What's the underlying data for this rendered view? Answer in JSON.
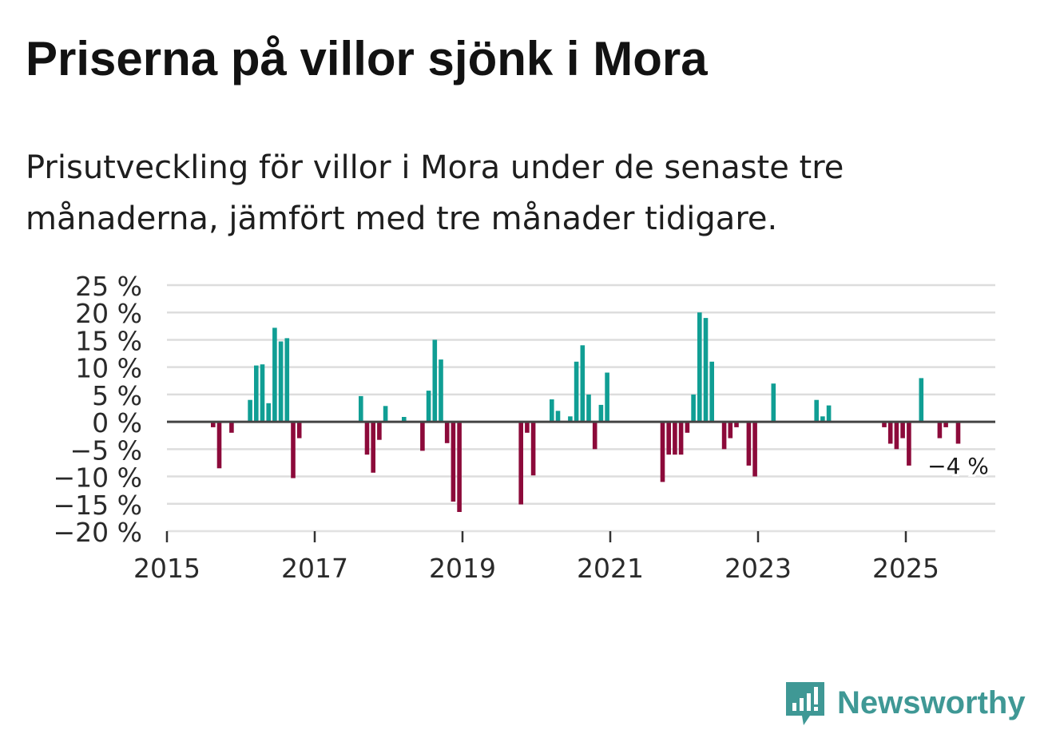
{
  "title": "Priserna på villor sjönk i Mora",
  "subtitle": "Prisutveckling för villor i Mora under de senaste tre månaderna, jämfört med tre månader tidigare.",
  "brand": {
    "name": "Newsworthy",
    "color": "#3f9895"
  },
  "colors": {
    "positive": "#109e94",
    "negative": "#8c0a3a",
    "grid": "#dddddd",
    "zero_line": "#444444"
  },
  "chart_data": {
    "type": "bar",
    "title": "Priserna på villor sjönk i Mora",
    "xlabel": "",
    "ylabel": "",
    "ylim": [
      -20,
      25
    ],
    "y_ticks": [
      25,
      20,
      15,
      10,
      5,
      0,
      -5,
      -10,
      -15,
      -20
    ],
    "y_tick_labels": [
      "25 %",
      "20 %",
      "15 %",
      "10 %",
      "5 %",
      "0 %",
      "−5 %",
      "−10 %",
      "−15 %",
      "−20 %"
    ],
    "x_tick_labels": [
      "2015",
      "2017",
      "2019",
      "2021",
      "2023",
      "2025"
    ],
    "x_tick_years": [
      2015,
      2017,
      2019,
      2021,
      2023,
      2025
    ],
    "start_year": 2015,
    "series": [
      {
        "name": "Prisutveckling",
        "points": [
          {
            "date": "2015-08",
            "value": -1
          },
          {
            "date": "2015-09",
            "value": -8.5
          },
          {
            "date": "2015-11",
            "value": -2
          },
          {
            "date": "2016-02",
            "value": 4
          },
          {
            "date": "2016-03",
            "value": 10.3
          },
          {
            "date": "2016-04",
            "value": 10.5
          },
          {
            "date": "2016-05",
            "value": 3.4
          },
          {
            "date": "2016-06",
            "value": 17.2
          },
          {
            "date": "2016-07",
            "value": 14.7
          },
          {
            "date": "2016-08",
            "value": 15.3
          },
          {
            "date": "2016-09",
            "value": -10.3
          },
          {
            "date": "2016-10",
            "value": -3
          },
          {
            "date": "2017-08",
            "value": 4.7
          },
          {
            "date": "2017-09",
            "value": -6
          },
          {
            "date": "2017-10",
            "value": -9.3
          },
          {
            "date": "2017-11",
            "value": -3.3
          },
          {
            "date": "2017-12",
            "value": 2.9
          },
          {
            "date": "2018-03",
            "value": 0.9
          },
          {
            "date": "2018-06",
            "value": -5.3
          },
          {
            "date": "2018-07",
            "value": 5.7
          },
          {
            "date": "2018-08",
            "value": 15
          },
          {
            "date": "2018-09",
            "value": 11.4
          },
          {
            "date": "2018-10",
            "value": -3.9
          },
          {
            "date": "2018-11",
            "value": -14.6
          },
          {
            "date": "2018-12",
            "value": -16.5
          },
          {
            "date": "2019-10",
            "value": -15.1
          },
          {
            "date": "2019-11",
            "value": -2
          },
          {
            "date": "2019-12",
            "value": -9.8
          },
          {
            "date": "2020-03",
            "value": 4.1
          },
          {
            "date": "2020-04",
            "value": 2
          },
          {
            "date": "2020-06",
            "value": 1
          },
          {
            "date": "2020-07",
            "value": 11
          },
          {
            "date": "2020-08",
            "value": 14
          },
          {
            "date": "2020-09",
            "value": 5
          },
          {
            "date": "2020-10",
            "value": -5
          },
          {
            "date": "2020-11",
            "value": 3.1
          },
          {
            "date": "2020-12",
            "value": 9
          },
          {
            "date": "2021-09",
            "value": -11
          },
          {
            "date": "2021-10",
            "value": -6
          },
          {
            "date": "2021-11",
            "value": -6
          },
          {
            "date": "2021-12",
            "value": -6
          },
          {
            "date": "2022-01",
            "value": -2
          },
          {
            "date": "2022-02",
            "value": 5
          },
          {
            "date": "2022-03",
            "value": 20
          },
          {
            "date": "2022-04",
            "value": 19
          },
          {
            "date": "2022-05",
            "value": 11
          },
          {
            "date": "2022-07",
            "value": -5
          },
          {
            "date": "2022-08",
            "value": -3
          },
          {
            "date": "2022-09",
            "value": -1
          },
          {
            "date": "2022-11",
            "value": -8
          },
          {
            "date": "2022-12",
            "value": -10
          },
          {
            "date": "2023-03",
            "value": 7
          },
          {
            "date": "2023-10",
            "value": 4
          },
          {
            "date": "2023-11",
            "value": 1
          },
          {
            "date": "2023-12",
            "value": 3
          },
          {
            "date": "2024-09",
            "value": -1
          },
          {
            "date": "2024-10",
            "value": -4
          },
          {
            "date": "2024-11",
            "value": -5
          },
          {
            "date": "2024-12",
            "value": -3
          },
          {
            "date": "2025-01",
            "value": -8
          },
          {
            "date": "2025-03",
            "value": 8
          },
          {
            "date": "2025-06",
            "value": -3
          },
          {
            "date": "2025-07",
            "value": -1
          },
          {
            "date": "2025-09",
            "value": -4
          }
        ]
      }
    ],
    "annotation": {
      "date": "2025-09",
      "text": "−4 %"
    }
  }
}
